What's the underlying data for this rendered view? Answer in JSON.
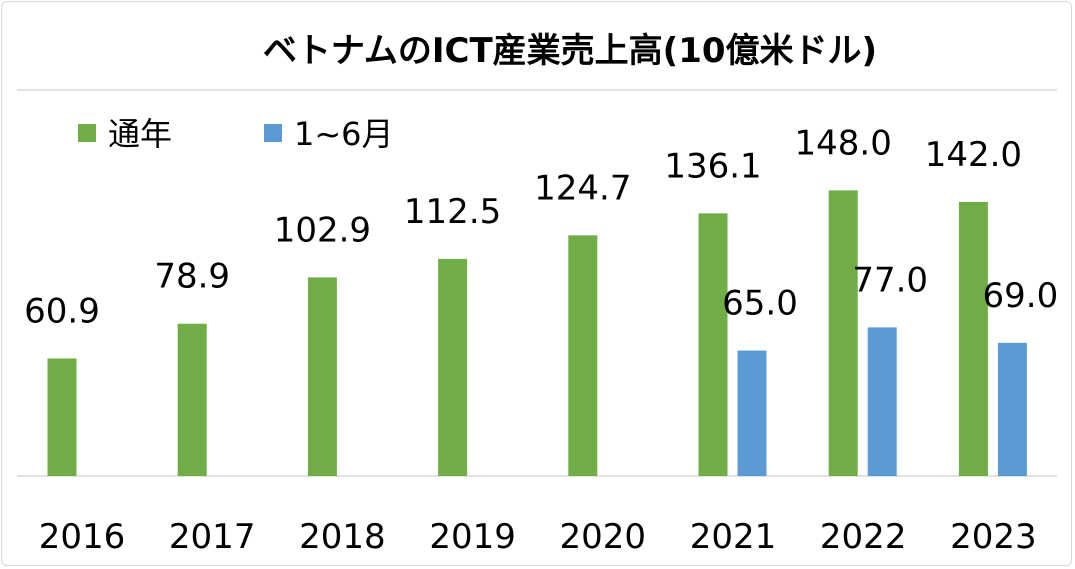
{
  "chart_data": {
    "type": "bar",
    "title": "ベトナムのICT産業売上高(10億米ドル)",
    "categories": [
      "2016",
      "2017",
      "2018",
      "2019",
      "2020",
      "2021",
      "2022",
      "2023"
    ],
    "series": [
      {
        "name": "通年",
        "color": "#70ad47",
        "values": [
          60.9,
          78.9,
          102.9,
          112.5,
          124.7,
          136.1,
          148.0,
          142.0
        ]
      },
      {
        "name": "1~6月",
        "color": "#5b9bd5",
        "values": [
          null,
          null,
          null,
          null,
          null,
          65.0,
          77.0,
          69.0
        ]
      }
    ],
    "xlabel": "",
    "ylabel": "",
    "ylim": [
      0,
      200
    ],
    "legend": "top-left",
    "grid": false
  }
}
